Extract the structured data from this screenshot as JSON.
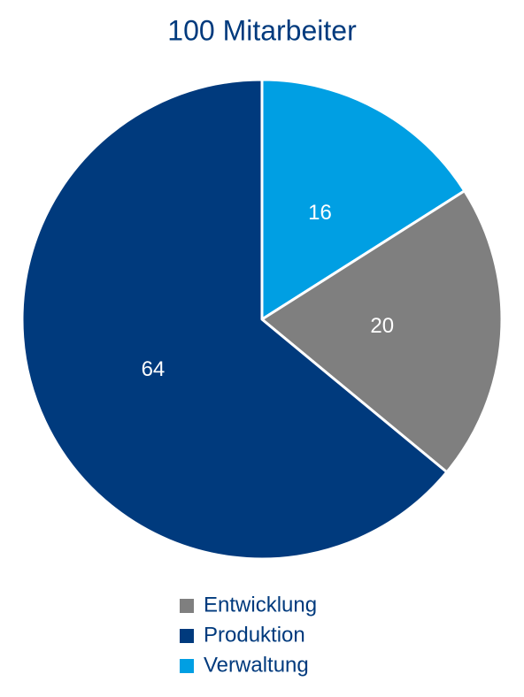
{
  "chart_data": {
    "type": "pie",
    "title": "100 Mitarbeiter",
    "categories": [
      "Entwicklung",
      "Produktion",
      "Verwaltung"
    ],
    "values": [
      20,
      64,
      16
    ],
    "colors": [
      "#7f7f7f",
      "#003a7d",
      "#009fe3"
    ],
    "legend": "bottom"
  }
}
